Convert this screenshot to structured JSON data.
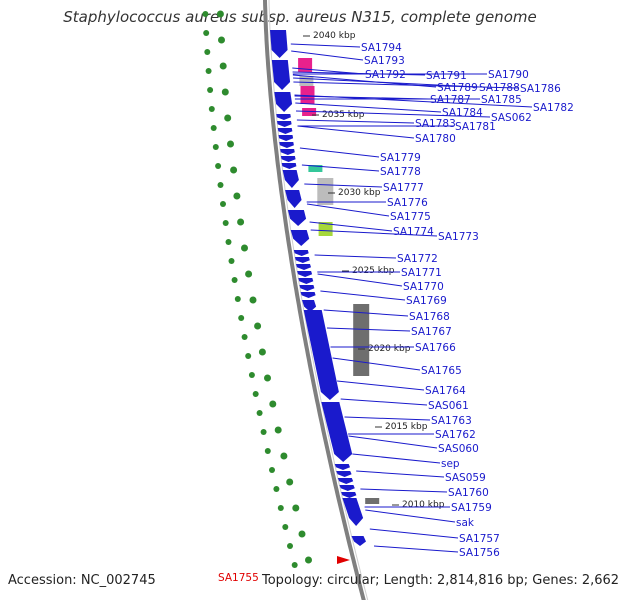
{
  "title": "Staphylococcus aureus subsp. aureus N315, complete genome",
  "footer": {
    "accession": "Accession: NC_002745",
    "summary": "Topology: circular; Length: 2,814,816 bp; Genes: 2,662"
  },
  "kbp_ticks": [
    "2040 kbp",
    "2035 kbp",
    "2030 kbp",
    "2025 kbp",
    "2020 kbp",
    "2015 kbp",
    "2010 kbp"
  ],
  "genes": [
    {
      "name": "SA1794",
      "color": "#1a1acc"
    },
    {
      "name": "SA1793",
      "color": "#1a1acc"
    },
    {
      "name": "SA1792",
      "color": "#1a1acc"
    },
    {
      "name": "SA1791",
      "color": "#1a1acc"
    },
    {
      "name": "SA1790",
      "color": "#1a1acc"
    },
    {
      "name": "SA1789",
      "color": "#1a1acc"
    },
    {
      "name": "SA1788",
      "color": "#1a1acc"
    },
    {
      "name": "SA1786",
      "color": "#1a1acc"
    },
    {
      "name": "SA1787",
      "color": "#1a1acc"
    },
    {
      "name": "SA1785",
      "color": "#1a1acc"
    },
    {
      "name": "SA1782",
      "color": "#1a1acc"
    },
    {
      "name": "SA1784",
      "color": "#1a1acc"
    },
    {
      "name": "SAS062",
      "color": "#1a1acc"
    },
    {
      "name": "SA1783",
      "color": "#1a1acc"
    },
    {
      "name": "SA1781",
      "color": "#1a1acc"
    },
    {
      "name": "SA1780",
      "color": "#1a1acc"
    },
    {
      "name": "SA1779",
      "color": "#1a1acc"
    },
    {
      "name": "SA1778",
      "color": "#1a1acc"
    },
    {
      "name": "SA1777",
      "color": "#1a1acc"
    },
    {
      "name": "SA1776",
      "color": "#1a1acc"
    },
    {
      "name": "SA1775",
      "color": "#1a1acc"
    },
    {
      "name": "SA1774",
      "color": "#1a1acc"
    },
    {
      "name": "SA1773",
      "color": "#1a1acc"
    },
    {
      "name": "SA1772",
      "color": "#1a1acc"
    },
    {
      "name": "SA1771",
      "color": "#1a1acc"
    },
    {
      "name": "SA1770",
      "color": "#1a1acc"
    },
    {
      "name": "SA1769",
      "color": "#1a1acc"
    },
    {
      "name": "SA1768",
      "color": "#1a1acc"
    },
    {
      "name": "SA1767",
      "color": "#1a1acc"
    },
    {
      "name": "SA1766",
      "color": "#1a1acc"
    },
    {
      "name": "SA1765",
      "color": "#1a1acc"
    },
    {
      "name": "SA1764",
      "color": "#1a1acc"
    },
    {
      "name": "SAS061",
      "color": "#1a1acc"
    },
    {
      "name": "SA1763",
      "color": "#1a1acc"
    },
    {
      "name": "SA1762",
      "color": "#1a1acc"
    },
    {
      "name": "SAS060",
      "color": "#1a1acc"
    },
    {
      "name": "sep",
      "color": "#1a1acc"
    },
    {
      "name": "SAS059",
      "color": "#1a1acc"
    },
    {
      "name": "SA1760",
      "color": "#1a1acc"
    },
    {
      "name": "SA1759",
      "color": "#1a1acc"
    },
    {
      "name": "sak",
      "color": "#1a1acc"
    },
    {
      "name": "SA1757",
      "color": "#1a1acc"
    },
    {
      "name": "SA1756",
      "color": "#1a1acc"
    },
    {
      "name": "SA1755",
      "color": "#e00000"
    }
  ],
  "colors": {
    "forward_strand": "#1a1acc",
    "backbone": "#7f7f7f",
    "gc_skew": "#2e8b2e",
    "label_blue": "#1a1acc",
    "label_red": "#e00000",
    "pink": "#e8218c",
    "gray_feature": "#bcbcbc",
    "dark_feature": "#6e6e6e",
    "teal": "#35c79a",
    "lime": "#a6d83a"
  }
}
